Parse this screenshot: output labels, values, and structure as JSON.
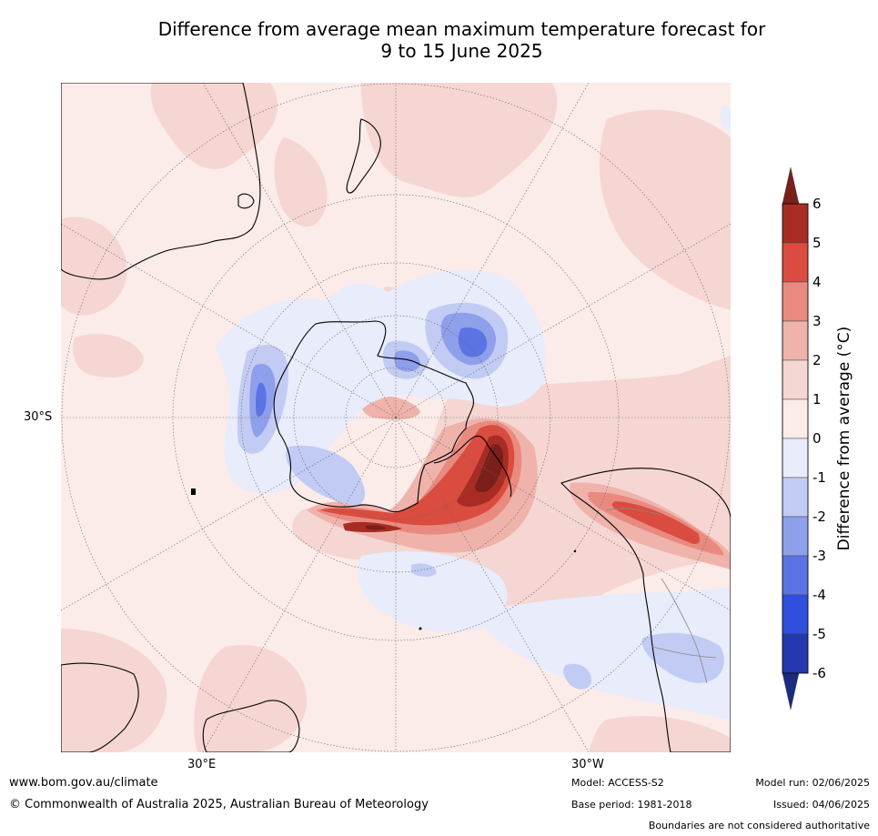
{
  "title": {
    "line1": "Difference from average mean maximum temperature forecast for",
    "line2": "9 to 15 June 2025"
  },
  "map": {
    "projection": "south-polar-stereographic",
    "lat_label": "30°S",
    "lon_labels": [
      "30°E",
      "30°W"
    ]
  },
  "colorbar": {
    "title": "Difference from average (°C)",
    "ticks": [
      "6",
      "5",
      "4",
      "3",
      "2",
      "1",
      "0",
      "-1",
      "-2",
      "-3",
      "-4",
      "-5",
      "-6"
    ],
    "colors": {
      "gt6": "#7a1f1a",
      "5_6": "#a82c24",
      "4_5": "#d94c3f",
      "3_4": "#e98a80",
      "2_3": "#efb3ab",
      "1_2": "#f5d6d2",
      "0_1": "#fbebe9",
      "m1_0": "#e8ecfb",
      "m2_m1": "#c2cbf3",
      "m3_m2": "#8e9feb",
      "m4_m3": "#5b73e3",
      "m5_m4": "#2f4fdc",
      "m6_m5": "#2538b0",
      "lt_m6": "#1c2b80"
    }
  },
  "footer": {
    "website": "www.bom.gov.au/climate",
    "copyright": "© Commonwealth of Australia 2025, Australian Bureau of Meteorology",
    "model": "Model: ACCESS-S2",
    "base_period": "Base period: 1981-2018",
    "model_run": "Model run: 02/06/2025",
    "issued": "Issued: 04/06/2025",
    "disclaimer": "Boundaries are not considered authoritative"
  }
}
